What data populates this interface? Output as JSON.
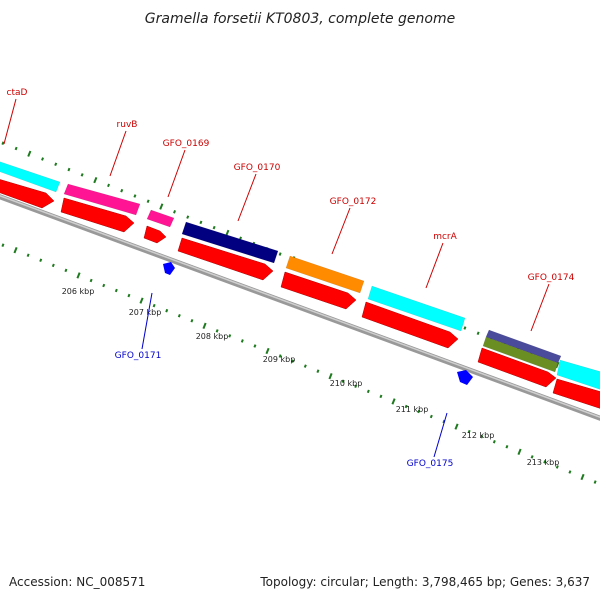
{
  "title": "Gramella forsetii KT0803, complete genome",
  "footer": {
    "accession": "Accession: NC_008571",
    "summary": "Topology: circular; Length: 3,798,465 bp; Genes: 3,637"
  },
  "colors": {
    "label_forward": "#cc0000",
    "label_reverse": "#0000cc",
    "backbone": "#999999",
    "ticks": "#1e7a1e",
    "cds": "#ff0000",
    "cyan": "#00ffff",
    "magenta": "#ff1493",
    "navy": "#000080",
    "orange": "#ff8c00",
    "slate": "#4b4b9c",
    "olive": "#6b8e23",
    "blue": "#0000ff"
  },
  "scale_labels": [
    "206 kbp",
    "207 kbp",
    "208 kbp",
    "209 kbp",
    "210 kbp",
    "211 kbp",
    "212 kbp",
    "213 kbp"
  ],
  "gene_labels": [
    {
      "name": "ctaD",
      "strand": "forward"
    },
    {
      "name": "ruvB",
      "strand": "forward"
    },
    {
      "name": "GFO_0169",
      "strand": "forward"
    },
    {
      "name": "GFO_0170",
      "strand": "forward"
    },
    {
      "name": "GFO_0172",
      "strand": "forward"
    },
    {
      "name": "mcrA",
      "strand": "forward"
    },
    {
      "name": "GFO_0174",
      "strand": "forward"
    },
    {
      "name": "GFO_0171",
      "strand": "reverse"
    },
    {
      "name": "GFO_0175",
      "strand": "reverse"
    }
  ]
}
